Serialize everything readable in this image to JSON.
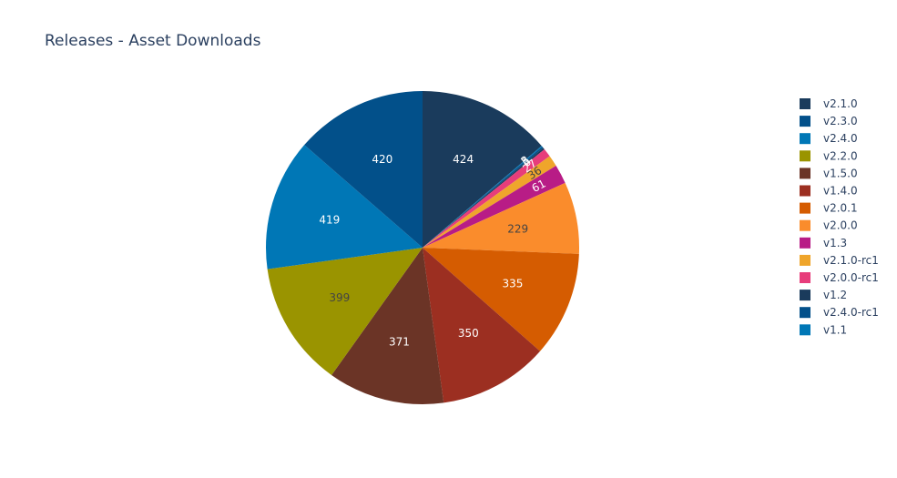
{
  "chart_data": {
    "type": "pie",
    "title": "Releases - Asset Downloads",
    "legend_position": "right",
    "slices": [
      {
        "label": "v2.1.0",
        "value": 424,
        "color": "#1a3b5c",
        "label_color": "#ffffff"
      },
      {
        "label": "v1.1",
        "value": 3,
        "color": "#0077b6",
        "label_color": "#ffffff"
      },
      {
        "label": "v2.4.0-rc1",
        "value": 5,
        "color": "#02508a",
        "label_color": "#ffffff"
      },
      {
        "label": "v1.2",
        "value": 6,
        "color": "#1a3b5c",
        "label_color": "#ffffff"
      },
      {
        "label": "v2.0.0-rc1",
        "value": 27,
        "color": "#e73d7b",
        "label_color": "#ffffff"
      },
      {
        "label": "v2.1.0-rc1",
        "value": 36,
        "color": "#efa52b",
        "label_color": "#444444"
      },
      {
        "label": "v1.3",
        "value": 61,
        "color": "#b81c86",
        "label_color": "#ffffff"
      },
      {
        "label": "v2.0.0",
        "value": 229,
        "color": "#fa8c2c",
        "label_color": "#444444"
      },
      {
        "label": "v2.0.1",
        "value": 335,
        "color": "#d55c01",
        "label_color": "#ffffff"
      },
      {
        "label": "v1.4.0",
        "value": 350,
        "color": "#9c2f21",
        "label_color": "#ffffff"
      },
      {
        "label": "v1.5.0",
        "value": 371,
        "color": "#6b3426",
        "label_color": "#ffffff"
      },
      {
        "label": "v2.2.0",
        "value": 399,
        "color": "#9a9400",
        "label_color": "#444444"
      },
      {
        "label": "v2.4.0",
        "value": 419,
        "color": "#0077b6",
        "label_color": "#ffffff"
      },
      {
        "label": "v2.3.0",
        "value": 420,
        "color": "#02508a",
        "label_color": "#ffffff"
      }
    ],
    "legend": [
      {
        "label": "v2.1.0",
        "color": "#1a3b5c"
      },
      {
        "label": "v2.3.0",
        "color": "#02508a"
      },
      {
        "label": "v2.4.0",
        "color": "#0077b6"
      },
      {
        "label": "v2.2.0",
        "color": "#9a9400"
      },
      {
        "label": "v1.5.0",
        "color": "#6b3426"
      },
      {
        "label": "v1.4.0",
        "color": "#9c2f21"
      },
      {
        "label": "v2.0.1",
        "color": "#d55c01"
      },
      {
        "label": "v2.0.0",
        "color": "#fa8c2c"
      },
      {
        "label": "v1.3",
        "color": "#b81c86"
      },
      {
        "label": "v2.1.0-rc1",
        "color": "#efa52b"
      },
      {
        "label": "v2.0.0-rc1",
        "color": "#e73d7b"
      },
      {
        "label": "v1.2",
        "color": "#1a3b5c"
      },
      {
        "label": "v2.4.0-rc1",
        "color": "#02508a"
      },
      {
        "label": "v1.1",
        "color": "#0077b6"
      }
    ]
  }
}
